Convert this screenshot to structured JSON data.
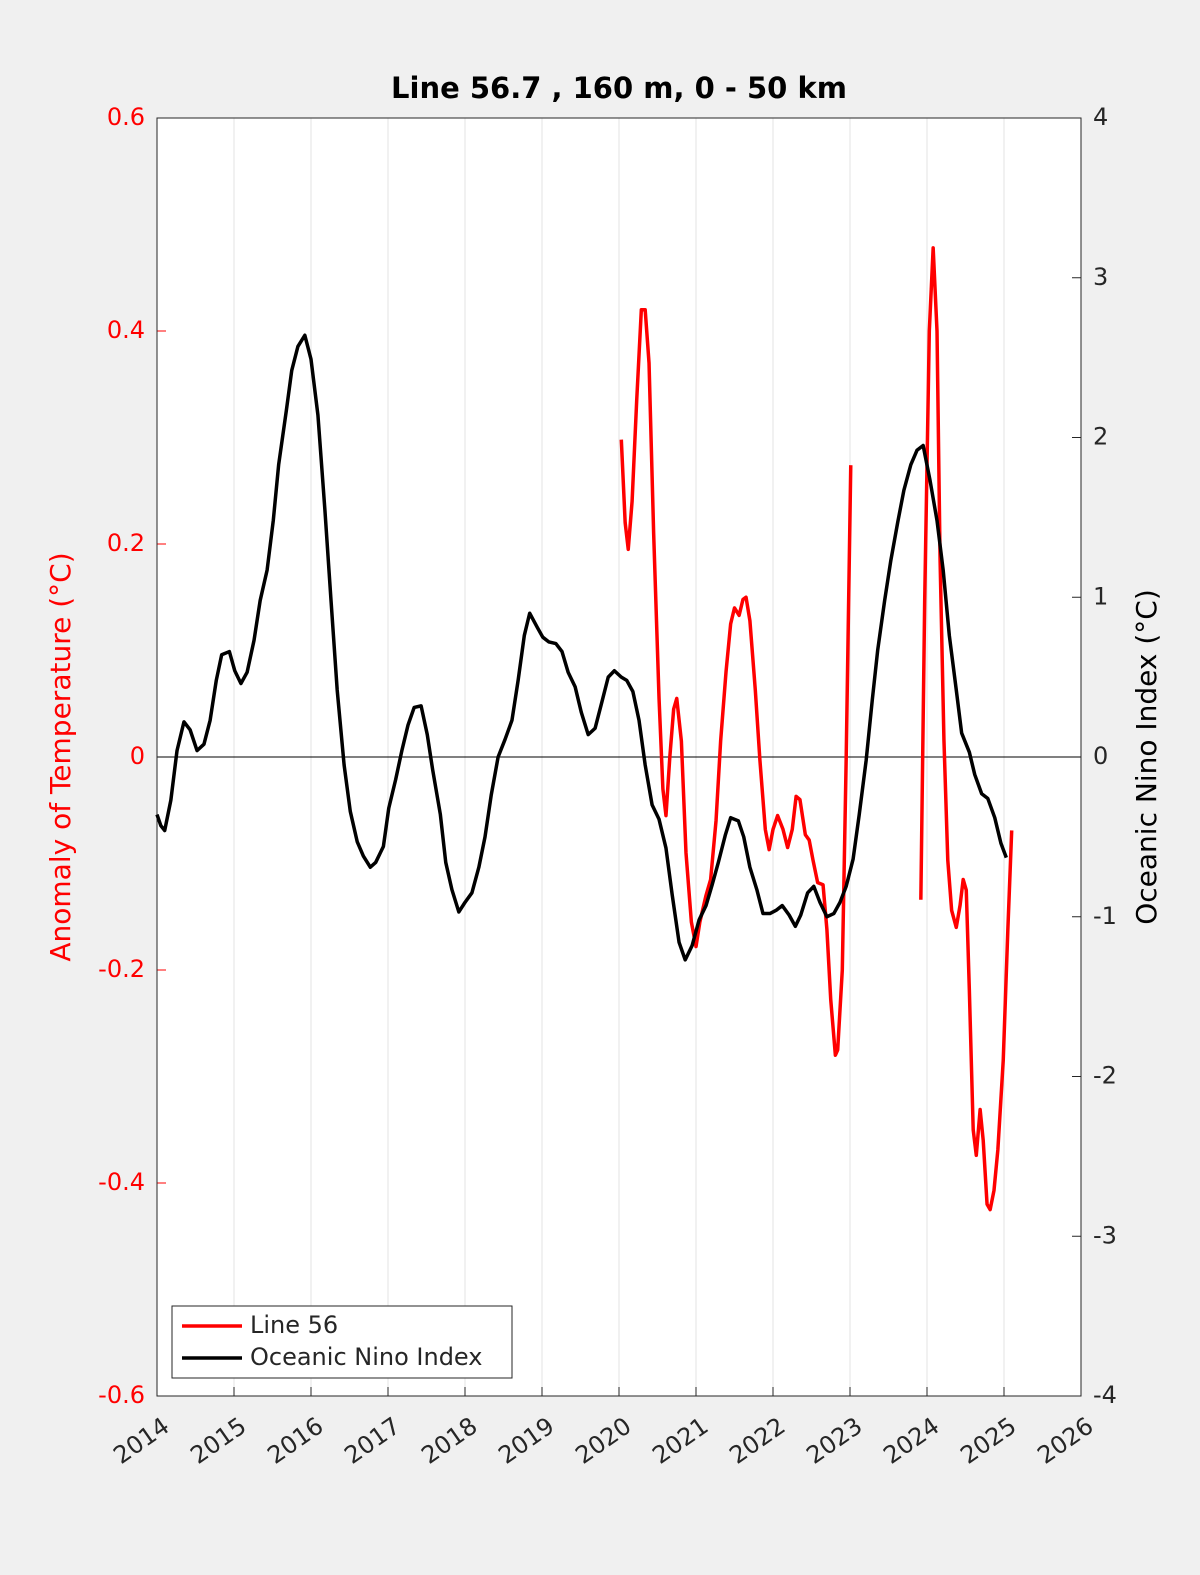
{
  "chart_data": {
    "type": "line",
    "title": "Line 56.7 , 160 m, 0 - 50 km",
    "ylabel": "Anomaly of Temperature (°C)",
    "y2label": "Oceanic Nino Index (°C)",
    "xlim": [
      2014,
      2026
    ],
    "xticks": [
      2014,
      2015,
      2016,
      2017,
      2018,
      2019,
      2020,
      2021,
      2022,
      2023,
      2024,
      2025,
      2026
    ],
    "ylim": [
      -0.6,
      0.6
    ],
    "yticks": [
      0.6,
      0.4,
      0.2,
      0,
      -0.2,
      -0.4,
      -0.6
    ],
    "y2lim": [
      -4,
      4
    ],
    "y2ticks": [
      4,
      3,
      2,
      1,
      0,
      -1,
      -2,
      -3,
      -4
    ],
    "grid": true,
    "legend": "southwest",
    "series": [
      {
        "name": "Line 56",
        "color": "#ff0000",
        "axis": "y",
        "x": [
          2020.03,
          2020.08,
          2020.12,
          2020.17,
          2020.23,
          2020.29,
          2020.34,
          2020.39,
          2020.45,
          2020.52,
          2020.57,
          2020.61,
          2020.66,
          2020.71,
          2020.75,
          2020.81,
          2020.87,
          2020.94,
          2021.0,
          2021.05,
          2021.13,
          2021.19,
          2021.26,
          2021.32,
          2021.39,
          2021.45,
          2021.5,
          2021.56,
          2021.61,
          2021.65,
          2021.7,
          2021.77,
          2021.83,
          2021.9,
          2021.95,
          2022.0,
          2022.06,
          2022.13,
          2022.19,
          2022.25,
          2022.3,
          2022.35,
          2022.42,
          2022.47,
          2022.52,
          2022.58,
          2022.65,
          2022.7,
          2022.75,
          2022.81,
          2022.84,
          2022.9,
          2022.95,
          2023.01,
          2023.47,
          2023.92,
          2023.97,
          2024.03,
          2024.08,
          2024.13,
          2024.17,
          2024.22,
          2024.27,
          2024.32,
          2024.38,
          2024.43,
          2024.47,
          2024.51,
          2024.55,
          2024.6,
          2024.64,
          2024.69,
          2024.73,
          2024.78,
          2024.82,
          2024.87,
          2024.92,
          2024.99,
          2025.05,
          2025.1
        ],
        "values": [
          0.298,
          0.22,
          0.195,
          0.24,
          0.335,
          0.42,
          0.42,
          0.37,
          0.21,
          0.055,
          -0.03,
          -0.055,
          0,
          0.045,
          0.055,
          0.015,
          -0.09,
          -0.155,
          -0.178,
          -0.155,
          -0.13,
          -0.115,
          -0.06,
          0.015,
          0.08,
          0.125,
          0.14,
          0.133,
          0.148,
          0.15,
          0.128,
          0.063,
          -0.003,
          -0.068,
          -0.087,
          -0.068,
          -0.055,
          -0.068,
          -0.085,
          -0.068,
          -0.037,
          -0.04,
          -0.073,
          -0.078,
          -0.097,
          -0.118,
          -0.12,
          -0.162,
          -0.228,
          -0.28,
          -0.275,
          -0.2,
          -0.003,
          0.274,
          null,
          -0.134,
          0.147,
          0.4,
          0.478,
          0.4,
          0.185,
          0.016,
          -0.097,
          -0.144,
          -0.16,
          -0.139,
          -0.115,
          -0.125,
          -0.219,
          -0.35,
          -0.374,
          -0.331,
          -0.36,
          -0.42,
          -0.425,
          -0.407,
          -0.369,
          -0.285,
          -0.162,
          -0.069
        ]
      },
      {
        "name": "Oceanic Nino Index",
        "color": "#000000",
        "axis": "y2",
        "x": [
          2014.0,
          2014.05,
          2014.1,
          2014.18,
          2014.26,
          2014.35,
          2014.43,
          2014.52,
          2014.61,
          2014.69,
          2014.77,
          2014.84,
          2014.94,
          2015.01,
          2015.09,
          2015.17,
          2015.26,
          2015.34,
          2015.43,
          2015.51,
          2015.58,
          2015.68,
          2015.75,
          2015.83,
          2015.92,
          2016.0,
          2016.09,
          2016.18,
          2016.26,
          2016.34,
          2016.43,
          2016.51,
          2016.6,
          2016.68,
          2016.77,
          2016.84,
          2016.94,
          2017.01,
          2017.1,
          2017.18,
          2017.26,
          2017.34,
          2017.43,
          2017.51,
          2017.58,
          2017.68,
          2017.75,
          2017.83,
          2017.92,
          2018.0,
          2018.09,
          2018.18,
          2018.26,
          2018.34,
          2018.43,
          2018.52,
          2018.61,
          2018.69,
          2018.77,
          2018.84,
          2018.94,
          2019.01,
          2019.09,
          2019.18,
          2019.26,
          2019.34,
          2019.43,
          2019.51,
          2019.6,
          2019.69,
          2019.77,
          2019.86,
          2019.94,
          2020.03,
          2020.1,
          2020.18,
          2020.26,
          2020.34,
          2020.43,
          2020.52,
          2020.61,
          2020.69,
          2020.78,
          2020.86,
          2020.95,
          2021.04,
          2021.13,
          2021.21,
          2021.29,
          2021.38,
          2021.45,
          2021.55,
          2021.62,
          2021.7,
          2021.79,
          2021.87,
          2021.96,
          2022.04,
          2022.12,
          2022.21,
          2022.29,
          2022.36,
          2022.45,
          2022.53,
          2022.61,
          2022.7,
          2022.79,
          2022.87,
          2022.95,
          2023.04,
          2023.12,
          2023.21,
          2023.29,
          2023.36,
          2023.45,
          2023.53,
          2023.62,
          2023.7,
          2023.79,
          2023.87,
          2023.95,
          2024.04,
          2024.13,
          2024.21,
          2024.29,
          2024.38,
          2024.45,
          2024.55,
          2024.62,
          2024.71,
          2024.79,
          2024.88,
          2024.96,
          2025.03
        ],
        "values": [
          -0.36,
          -0.43,
          -0.46,
          -0.27,
          0.04,
          0.22,
          0.17,
          0.04,
          0.08,
          0.23,
          0.48,
          0.64,
          0.66,
          0.54,
          0.46,
          0.53,
          0.73,
          0.98,
          1.17,
          1.48,
          1.83,
          2.17,
          2.42,
          2.57,
          2.64,
          2.49,
          2.14,
          1.55,
          0.98,
          0.42,
          -0.05,
          -0.34,
          -0.53,
          -0.62,
          -0.69,
          -0.66,
          -0.56,
          -0.32,
          -0.14,
          0.04,
          0.2,
          0.31,
          0.32,
          0.14,
          -0.08,
          -0.36,
          -0.66,
          -0.83,
          -0.97,
          -0.91,
          -0.85,
          -0.69,
          -0.5,
          -0.24,
          0,
          0.11,
          0.23,
          0.48,
          0.76,
          0.9,
          0.81,
          0.75,
          0.72,
          0.71,
          0.66,
          0.53,
          0.44,
          0.28,
          0.14,
          0.18,
          0.33,
          0.5,
          0.54,
          0.5,
          0.48,
          0.41,
          0.23,
          -0.05,
          -0.3,
          -0.39,
          -0.57,
          -0.86,
          -1.16,
          -1.27,
          -1.18,
          -1.02,
          -0.93,
          -0.8,
          -0.66,
          -0.49,
          -0.38,
          -0.4,
          -0.5,
          -0.69,
          -0.83,
          -0.98,
          -0.98,
          -0.96,
          -0.93,
          -0.99,
          -1.06,
          -0.99,
          -0.85,
          -0.81,
          -0.91,
          -1.0,
          -0.98,
          -0.91,
          -0.81,
          -0.64,
          -0.36,
          -0.02,
          0.36,
          0.67,
          0.98,
          1.23,
          1.47,
          1.67,
          1.83,
          1.92,
          1.95,
          1.73,
          1.48,
          1.17,
          0.76,
          0.42,
          0.15,
          0.03,
          -0.11,
          -0.23,
          -0.26,
          -0.38,
          -0.54,
          -0.63
        ]
      }
    ]
  }
}
